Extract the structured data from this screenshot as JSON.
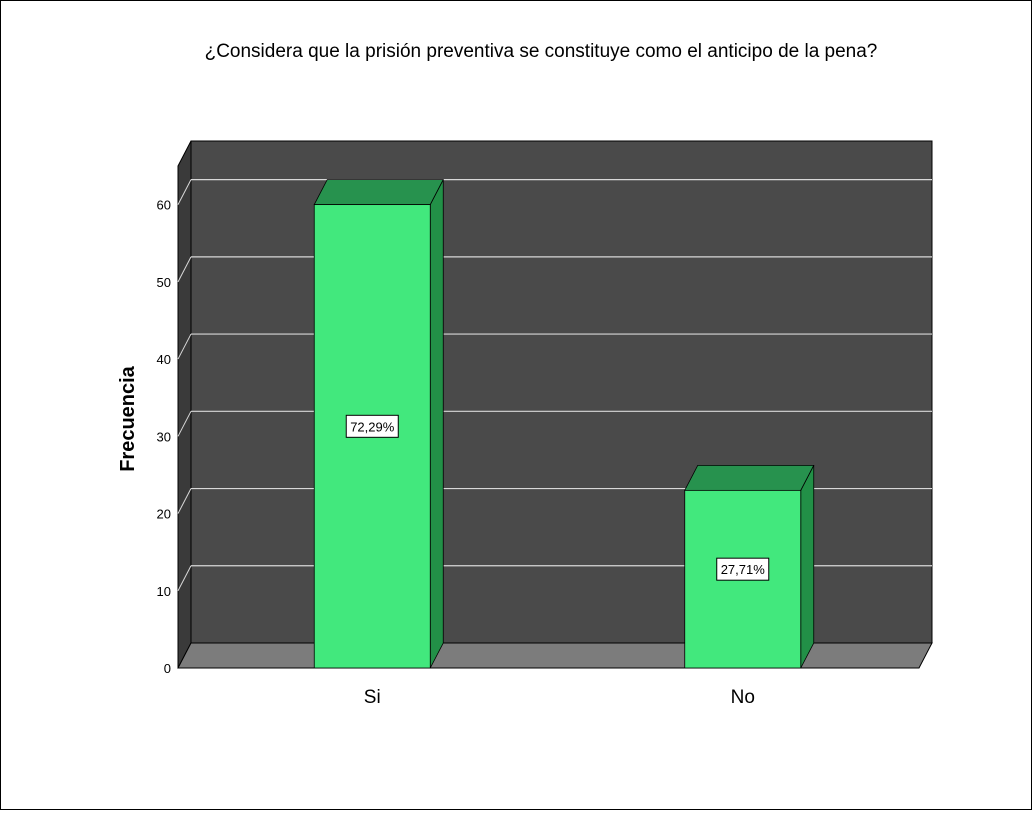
{
  "chart_data": {
    "type": "bar",
    "title": "¿Considera que la prisión preventiva se constituye como el anticipo de la pena?",
    "xlabel": "",
    "ylabel": "Frecuencia",
    "categories": [
      "Si",
      "No"
    ],
    "values": [
      60,
      23
    ],
    "data_labels": [
      "72,29%",
      "27,71%"
    ],
    "ylim": [
      0,
      65
    ],
    "yticks": [
      0,
      10,
      20,
      30,
      40,
      50,
      60
    ],
    "grid": true,
    "legend": "none",
    "colors": {
      "bar_front": "#42e87d",
      "bar_top": "#27924e",
      "bar_side": "#229047",
      "back_wall": "#4a4a4a",
      "floor": "#7c7c7c",
      "side_wall": "#3a3a3a",
      "gridline": "#d8d8d8"
    }
  }
}
